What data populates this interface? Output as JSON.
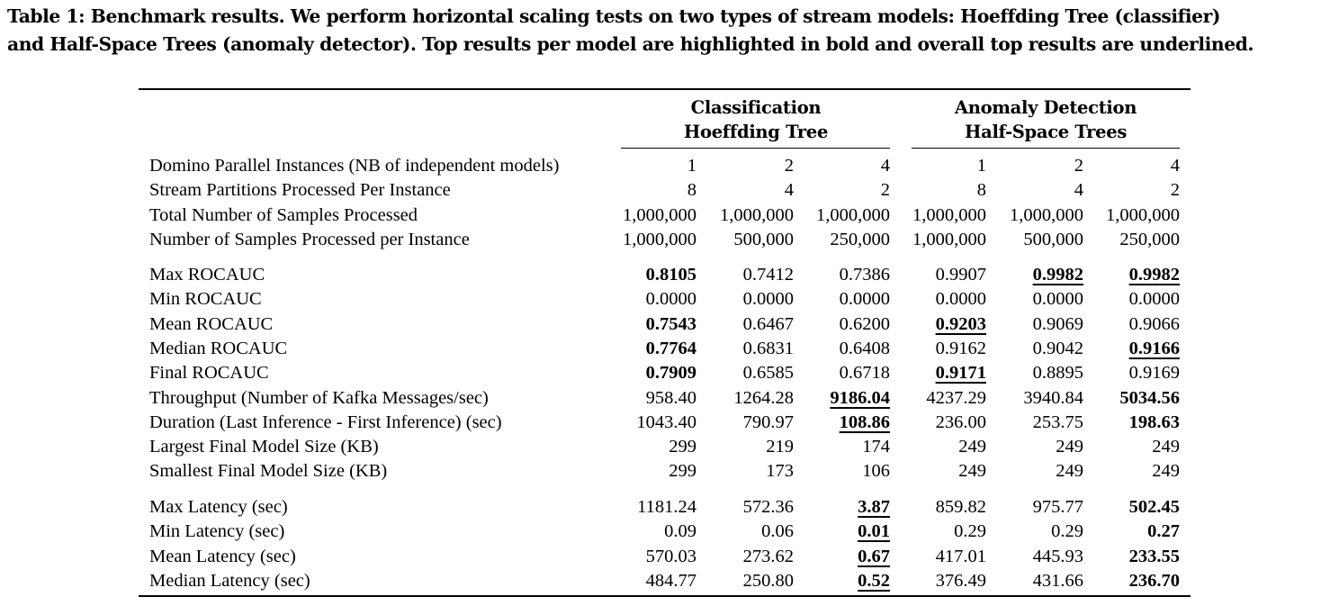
{
  "caption": {
    "line1": "Table 1: Benchmark results. We perform horizontal scaling tests on two types of stream models: Hoeffding Tree (classifier)",
    "line2": "and Half-Space Trees (anomaly detector). Top results per model are highlighted in bold and overall top results are underlined."
  },
  "groups": [
    {
      "line1": "Classification",
      "line2": "Hoeffding Tree"
    },
    {
      "line1": "Anomaly Detection",
      "line2": "Half-Space Trees"
    }
  ],
  "sections": [
    [
      {
        "label": "Domino Parallel Instances (NB of independent models)",
        "cells": [
          {
            "v": "1"
          },
          {
            "v": "2"
          },
          {
            "v": "4"
          },
          {
            "v": "1"
          },
          {
            "v": "2"
          },
          {
            "v": "4"
          }
        ]
      },
      {
        "label": "Stream Partitions Processed Per Instance",
        "cells": [
          {
            "v": "8"
          },
          {
            "v": "4"
          },
          {
            "v": "2"
          },
          {
            "v": "8"
          },
          {
            "v": "4"
          },
          {
            "v": "2"
          }
        ]
      },
      {
        "label": "Total Number of Samples Processed",
        "cells": [
          {
            "v": "1,000,000"
          },
          {
            "v": "1,000,000"
          },
          {
            "v": "1,000,000"
          },
          {
            "v": "1,000,000"
          },
          {
            "v": "1,000,000"
          },
          {
            "v": "1,000,000"
          }
        ]
      },
      {
        "label": "Number of Samples Processed per Instance",
        "cells": [
          {
            "v": "1,000,000"
          },
          {
            "v": "500,000"
          },
          {
            "v": "250,000"
          },
          {
            "v": "1,000,000"
          },
          {
            "v": "500,000"
          },
          {
            "v": "250,000"
          }
        ]
      }
    ],
    [
      {
        "label": "Max ROCAUC",
        "cells": [
          {
            "v": "0.8105",
            "b": true
          },
          {
            "v": "0.7412"
          },
          {
            "v": "0.7386"
          },
          {
            "v": "0.9907"
          },
          {
            "v": "0.9982",
            "b": true,
            "u": true
          },
          {
            "v": "0.9982",
            "b": true,
            "u": true
          }
        ]
      },
      {
        "label": "Min ROCAUC",
        "cells": [
          {
            "v": "0.0000"
          },
          {
            "v": "0.0000"
          },
          {
            "v": "0.0000"
          },
          {
            "v": "0.0000"
          },
          {
            "v": "0.0000"
          },
          {
            "v": "0.0000"
          }
        ]
      },
      {
        "label": "Mean ROCAUC",
        "cells": [
          {
            "v": "0.7543",
            "b": true
          },
          {
            "v": "0.6467"
          },
          {
            "v": "0.6200"
          },
          {
            "v": "0.9203",
            "b": true,
            "u": true
          },
          {
            "v": "0.9069"
          },
          {
            "v": "0.9066"
          }
        ]
      },
      {
        "label": "Median ROCAUC",
        "cells": [
          {
            "v": "0.7764",
            "b": true
          },
          {
            "v": "0.6831"
          },
          {
            "v": "0.6408"
          },
          {
            "v": "0.9162"
          },
          {
            "v": "0.9042"
          },
          {
            "v": "0.9166",
            "b": true,
            "u": true
          }
        ]
      },
      {
        "label": "Final ROCAUC",
        "cells": [
          {
            "v": "0.7909",
            "b": true
          },
          {
            "v": "0.6585"
          },
          {
            "v": "0.6718"
          },
          {
            "v": "0.9171",
            "b": true,
            "u": true
          },
          {
            "v": "0.8895"
          },
          {
            "v": "0.9169"
          }
        ]
      },
      {
        "label": "Throughput (Number of Kafka Messages/sec)",
        "cells": [
          {
            "v": "958.40"
          },
          {
            "v": "1264.28"
          },
          {
            "v": "9186.04",
            "b": true,
            "u": true
          },
          {
            "v": "4237.29"
          },
          {
            "v": "3940.84"
          },
          {
            "v": "5034.56",
            "b": true
          }
        ]
      },
      {
        "label": "Duration (Last Inference - First Inference) (sec)",
        "cells": [
          {
            "v": "1043.40"
          },
          {
            "v": "790.97"
          },
          {
            "v": "108.86",
            "b": true,
            "u": true
          },
          {
            "v": "236.00"
          },
          {
            "v": "253.75"
          },
          {
            "v": "198.63",
            "b": true
          }
        ]
      },
      {
        "label": "Largest Final Model Size (KB)",
        "cells": [
          {
            "v": "299"
          },
          {
            "v": "219"
          },
          {
            "v": "174"
          },
          {
            "v": "249"
          },
          {
            "v": "249"
          },
          {
            "v": "249"
          }
        ]
      },
      {
        "label": "Smallest Final Model Size (KB)",
        "cells": [
          {
            "v": "299"
          },
          {
            "v": "173"
          },
          {
            "v": "106"
          },
          {
            "v": "249"
          },
          {
            "v": "249"
          },
          {
            "v": "249"
          }
        ]
      }
    ],
    [
      {
        "label": "Max Latency (sec)",
        "cells": [
          {
            "v": "1181.24"
          },
          {
            "v": "572.36"
          },
          {
            "v": "3.87",
            "b": true,
            "u": true
          },
          {
            "v": "859.82"
          },
          {
            "v": "975.77"
          },
          {
            "v": "502.45",
            "b": true
          }
        ]
      },
      {
        "label": "Min Latency (sec)",
        "cells": [
          {
            "v": "0.09"
          },
          {
            "v": "0.06"
          },
          {
            "v": "0.01",
            "b": true,
            "u": true
          },
          {
            "v": "0.29"
          },
          {
            "v": "0.29"
          },
          {
            "v": "0.27",
            "b": true
          }
        ]
      },
      {
        "label": "Mean Latency (sec)",
        "cells": [
          {
            "v": "570.03"
          },
          {
            "v": "273.62"
          },
          {
            "v": "0.67",
            "b": true,
            "u": true
          },
          {
            "v": "417.01"
          },
          {
            "v": "445.93"
          },
          {
            "v": "233.55",
            "b": true
          }
        ]
      },
      {
        "label": "Median Latency (sec)",
        "cells": [
          {
            "v": "484.77"
          },
          {
            "v": "250.80"
          },
          {
            "v": "0.52",
            "b": true,
            "u": true
          },
          {
            "v": "376.49"
          },
          {
            "v": "431.66"
          },
          {
            "v": "236.70",
            "b": true
          }
        ]
      }
    ]
  ]
}
